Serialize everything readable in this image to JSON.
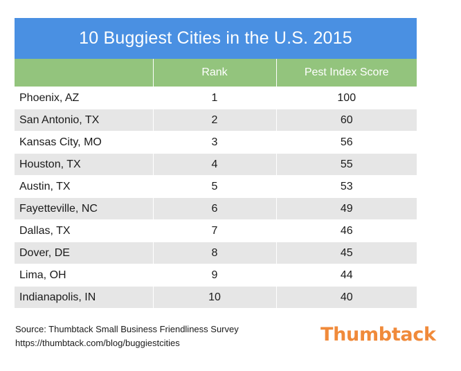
{
  "chart_data": {
    "type": "table",
    "title": "10 Buggiest Cities in the U.S. 2015",
    "columns": [
      "",
      "Rank",
      "Pest Index Score"
    ],
    "rows": [
      {
        "city": "Phoenix, AZ",
        "rank": "1",
        "score": "100"
      },
      {
        "city": "San Antonio, TX",
        "rank": "2",
        "score": "60"
      },
      {
        "city": "Kansas City, MO",
        "rank": "3",
        "score": "56"
      },
      {
        "city": "Houston, TX",
        "rank": "4",
        "score": "55"
      },
      {
        "city": "Austin, TX",
        "rank": "5",
        "score": "53"
      },
      {
        "city": "Fayetteville, NC",
        "rank": "6",
        "score": "49"
      },
      {
        "city": "Dallas, TX",
        "rank": "7",
        "score": "46"
      },
      {
        "city": "Dover, DE",
        "rank": "8",
        "score": "45"
      },
      {
        "city": "Lima, OH",
        "rank": "9",
        "score": "44"
      },
      {
        "city": "Indianapolis, IN",
        "rank": "10",
        "score": "40"
      }
    ]
  },
  "source": {
    "line1": "Source: Thumbtack Small Business Friendliness Survey",
    "line2": "https://thumbtack.com/blog/buggiestcities"
  },
  "logo": "Thumbtack",
  "colors": {
    "title_bg": "#4a90e2",
    "header_bg": "#93c47d",
    "stripe": "#e6e6e6",
    "logo": "#f08a3a"
  }
}
